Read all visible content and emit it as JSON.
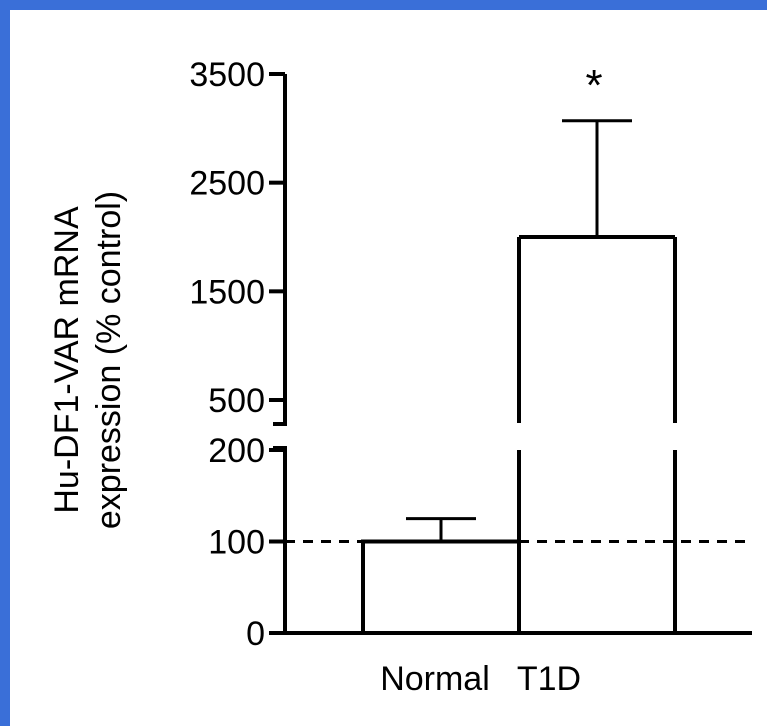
{
  "chart_data": {
    "type": "bar",
    "categories": [
      "Normal",
      "T1D"
    ],
    "values": [
      100,
      2000
    ],
    "errors": [
      25,
      1070
    ],
    "ylabel_line1": "Hu-DF1-VAR mRNA",
    "ylabel_line2": "expression (% control)",
    "yticks_lower": [
      "0",
      "100",
      "200"
    ],
    "yticks_upper": [
      "500",
      "1500",
      "2500",
      "3500"
    ],
    "lower_segment_range": [
      0,
      200
    ],
    "upper_segment_range": [
      500,
      3500
    ],
    "reference_line": 100,
    "significance_marker": "*",
    "significance_category": "T1D",
    "grid": false,
    "legend": "none"
  }
}
